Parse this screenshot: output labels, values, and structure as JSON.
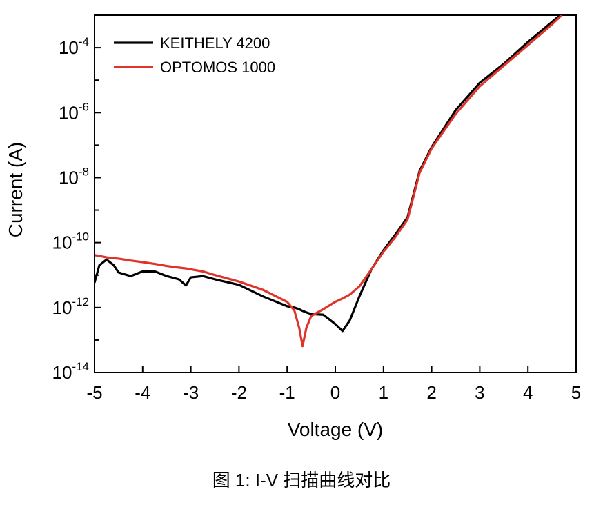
{
  "chart_data": {
    "type": "line",
    "x_label": "Voltage (V)",
    "y_label": "Current (A)",
    "caption": "图 1: I-V 扫描曲线对比",
    "log_y": true,
    "legend": "upper-left",
    "xlim": [
      -5,
      5
    ],
    "xticks": [
      -5,
      -4,
      -3,
      -2,
      -1,
      0,
      1,
      2,
      3,
      4,
      5
    ],
    "ylim": [
      1e-14,
      0.001
    ],
    "yticks": [
      {
        "value": 1e-14,
        "label": "10",
        "exponent": "-14"
      },
      {
        "value": 1e-12,
        "label": "10",
        "exponent": "-12"
      },
      {
        "value": 1e-10,
        "label": "10",
        "exponent": "-10"
      },
      {
        "value": 1e-08,
        "label": "10",
        "exponent": "-8"
      },
      {
        "value": 1e-06,
        "label": "10",
        "exponent": "-6"
      },
      {
        "value": 0.0001,
        "label": "10",
        "exponent": "-4"
      }
    ],
    "yminor_ticks": [
      1e-13,
      1e-11,
      1e-09,
      1e-07,
      1e-05
    ],
    "x": [
      -5,
      -4.9,
      -4.75,
      -4.6,
      -4.5,
      -4.25,
      -4,
      -3.75,
      -3.5,
      -3.25,
      -3.1,
      -3,
      -2.75,
      -2.5,
      -2,
      -1.5,
      -1,
      -0.85,
      -0.75,
      -0.68,
      -0.6,
      -0.5,
      -0.25,
      0,
      0.15,
      0.3,
      0.5,
      0.75,
      1,
      1.25,
      1.5,
      1.75,
      2,
      2.5,
      3,
      3.5,
      4,
      4.5,
      4.7
    ],
    "series": [
      {
        "name": "KEITHELY 4200",
        "color": "#000000",
        "values": [
          5.8e-12,
          2e-11,
          3e-11,
          2e-11,
          1.2e-11,
          9.3e-12,
          1.3e-11,
          1.3e-11,
          9.3e-12,
          7.4e-12,
          4.8e-12,
          8.5e-12,
          9.3e-12,
          7.4e-12,
          5e-12,
          2.2e-12,
          1.1e-12,
          1e-12,
          8.9e-13,
          7.9e-13,
          7.1e-13,
          6.3e-13,
          6e-13,
          3.1e-13,
          1.9e-13,
          4e-13,
          2.2e-12,
          1.5e-11,
          5.8e-11,
          1.8e-10,
          6e-10,
          1.6e-08,
          8.7e-08,
          1.2e-06,
          8.3e-06,
          3.2e-05,
          0.00015,
          0.00062,
          0.0011
        ]
      },
      {
        "name": "OPTOMOS 1000",
        "color": "#e0332a",
        "values": [
          4.1e-11,
          3.9e-11,
          3.5e-11,
          3.3e-11,
          3.2e-11,
          2.8e-11,
          2.5e-11,
          2.2e-11,
          1.9e-11,
          1.7e-11,
          1.6e-11,
          1.5e-11,
          1.3e-11,
          1e-11,
          6.3e-12,
          3.5e-12,
          1.5e-12,
          8.1e-13,
          2.4e-13,
          6.5e-14,
          2.4e-13,
          5.5e-13,
          8.9e-13,
          1.5e-12,
          1.9e-12,
          2.5e-12,
          4.5e-12,
          1.5e-11,
          5.2e-11,
          1.5e-10,
          5.1e-10,
          1.4e-08,
          7.9e-08,
          9.1e-07,
          6.5e-06,
          2.8e-05,
          0.00012,
          0.00052,
          0.001
        ]
      }
    ]
  }
}
